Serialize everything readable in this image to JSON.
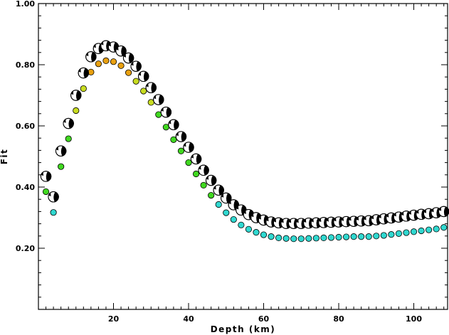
{
  "chart_data": {
    "type": "scatter",
    "title": "",
    "xlabel": "Depth (km)",
    "ylabel": "Fit",
    "xlim": [
      0,
      109
    ],
    "ylim": [
      0,
      1.0
    ],
    "x_ticks": [
      20,
      40,
      60,
      80,
      100
    ],
    "y_ticks": [
      0.2,
      0.4,
      0.6,
      0.8,
      1.0
    ],
    "x_tick_labels": [
      "20",
      "40",
      "60",
      "80",
      "100"
    ],
    "y_tick_labels": [
      "0.20",
      "0.40",
      "0.60",
      "0.80",
      "1.00"
    ],
    "grid": false,
    "marker_colors": {
      "high": "#e8a010",
      "mid": "#c8dc20",
      "low_mid": "#40d820",
      "low": "#30d8d0",
      "beachball_fill": "#000000",
      "beachball_bg": "#ffffff"
    },
    "series": [
      {
        "marker": "filled-circle",
        "x": [
          2,
          4,
          6,
          8,
          10,
          12,
          14,
          16,
          18,
          20,
          22,
          24,
          26,
          28,
          30,
          32,
          34,
          36,
          38,
          40,
          42,
          44,
          46,
          48,
          50,
          52,
          54,
          56,
          58,
          60,
          62,
          64,
          66,
          68,
          70,
          72,
          74,
          76,
          78,
          80,
          82,
          84,
          86,
          88,
          90,
          92,
          94,
          96,
          98,
          100,
          102,
          104,
          106,
          108
        ],
        "y": [
          0.385,
          0.317,
          0.467,
          0.558,
          0.65,
          0.722,
          0.776,
          0.803,
          0.813,
          0.81,
          0.797,
          0.774,
          0.746,
          0.714,
          0.677,
          0.637,
          0.596,
          0.555,
          0.518,
          0.48,
          0.443,
          0.406,
          0.373,
          0.343,
          0.316,
          0.294,
          0.276,
          0.262,
          0.252,
          0.244,
          0.238,
          0.234,
          0.232,
          0.231,
          0.231,
          0.232,
          0.233,
          0.234,
          0.235,
          0.236,
          0.237,
          0.238,
          0.238,
          0.238,
          0.24,
          0.242,
          0.245,
          0.248,
          0.251,
          0.254,
          0.257,
          0.26,
          0.263,
          0.268
        ]
      },
      {
        "marker": "beachball",
        "x": [
          2,
          4,
          6,
          8,
          10,
          12,
          14,
          16,
          18,
          20,
          22,
          24,
          26,
          28,
          30,
          32,
          34,
          36,
          38,
          40,
          42,
          44,
          46,
          48,
          50,
          52,
          54,
          56,
          58,
          60,
          62,
          64,
          66,
          68,
          70,
          72,
          74,
          76,
          78,
          80,
          82,
          84,
          86,
          88,
          90,
          92,
          94,
          96,
          98,
          100,
          102,
          104,
          106,
          108
        ],
        "y": [
          0.435,
          0.368,
          0.518,
          0.608,
          0.7,
          0.773,
          0.826,
          0.853,
          0.862,
          0.858,
          0.845,
          0.822,
          0.795,
          0.762,
          0.725,
          0.686,
          0.645,
          0.604,
          0.565,
          0.53,
          0.492,
          0.455,
          0.422,
          0.39,
          0.364,
          0.342,
          0.325,
          0.31,
          0.3,
          0.292,
          0.286,
          0.283,
          0.281,
          0.281,
          0.281,
          0.282,
          0.283,
          0.284,
          0.285,
          0.286,
          0.287,
          0.288,
          0.289,
          0.29,
          0.293,
          0.296,
          0.299,
          0.302,
          0.305,
          0.308,
          0.311,
          0.313,
          0.316,
          0.32
        ]
      }
    ]
  }
}
